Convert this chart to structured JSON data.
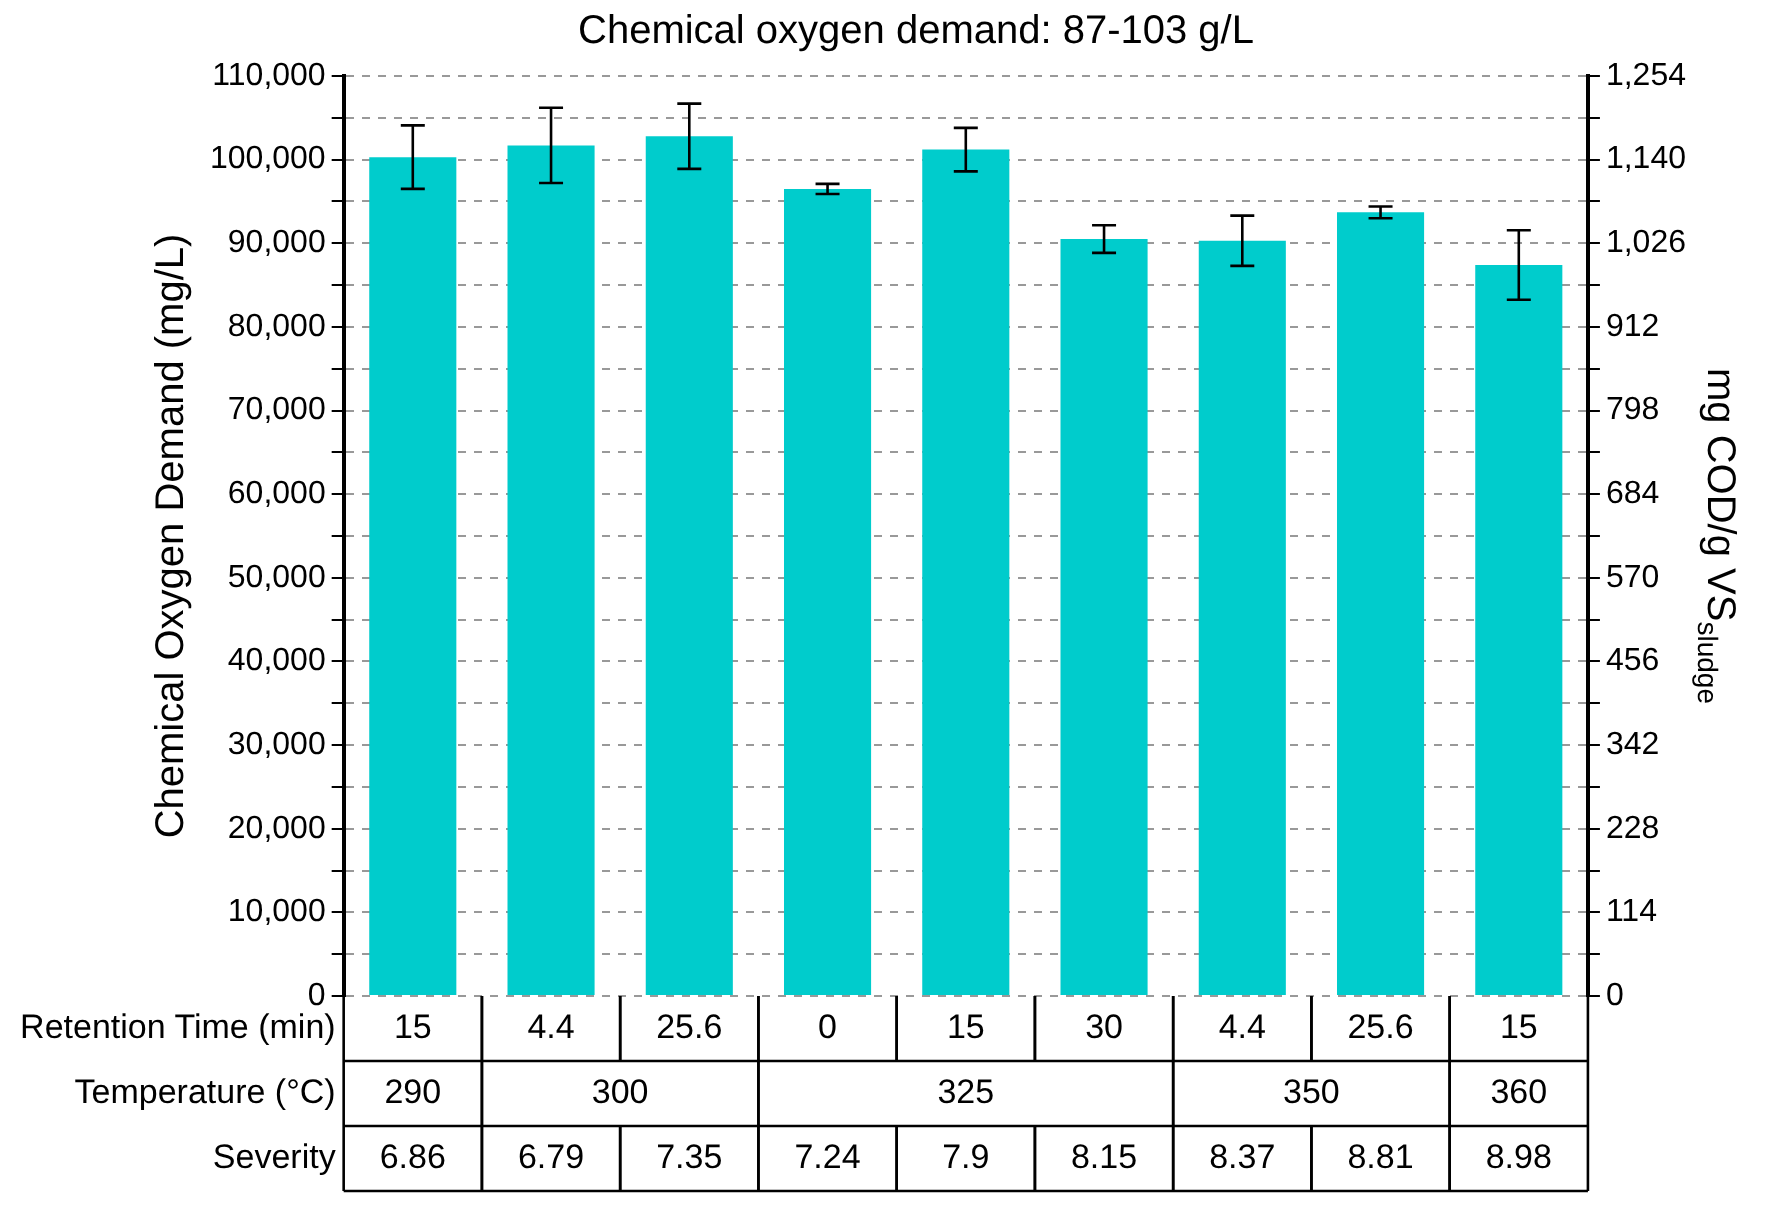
{
  "chart_data": {
    "type": "bar",
    "title": "Chemical oxygen demand: 87-103 g/L",
    "ylabel": "Chemical Oxygen Demand (mg/L)",
    "y2label": "mg COD/g VS$_{sludge}$",
    "categories": [
      "15",
      "4.4",
      "25.6",
      "0",
      "15",
      "30",
      "4.4",
      "25.6",
      "15"
    ],
    "values": [
      100300,
      101700,
      102800,
      96500,
      101200,
      90500,
      90300,
      93700,
      87400
    ],
    "errors": [
      3800,
      4500,
      3900,
      600,
      2600,
      1650,
      3000,
      700,
      4150
    ],
    "color": "#00cccc",
    "ylim": [
      0,
      110000
    ],
    "yticks": [
      {
        "value": 0,
        "label": "0"
      },
      {
        "value": 5000,
        "label": null
      },
      {
        "value": 10000,
        "label": "10,000"
      },
      {
        "value": 15000,
        "label": null
      },
      {
        "value": 20000,
        "label": "20,000"
      },
      {
        "value": 25000,
        "label": null
      },
      {
        "value": 30000,
        "label": "30,000"
      },
      {
        "value": 35000,
        "label": null
      },
      {
        "value": 40000,
        "label": "40,000"
      },
      {
        "value": 45000,
        "label": null
      },
      {
        "value": 50000,
        "label": "50,000"
      },
      {
        "value": 55000,
        "label": null
      },
      {
        "value": 60000,
        "label": "60,000"
      },
      {
        "value": 65000,
        "label": null
      },
      {
        "value": 70000,
        "label": "70,000"
      },
      {
        "value": 75000,
        "label": null
      },
      {
        "value": 80000,
        "label": "80,000"
      },
      {
        "value": 85000,
        "label": null
      },
      {
        "value": 90000,
        "label": "90,000"
      },
      {
        "value": 95000,
        "label": null
      },
      {
        "value": 100000,
        "label": "100,000"
      },
      {
        "value": 105000,
        "label": null
      },
      {
        "value": 110000,
        "label": "110,000"
      }
    ],
    "y2lim": [
      0,
      1254
    ],
    "y2ticks": [
      0,
      {
        "value": 57,
        "label": null
      },
      114,
      {
        "value": 171,
        "label": null
      },
      228,
      {
        "value": 285,
        "label": null
      },
      342,
      {
        "value": 399,
        "label": null
      },
      456,
      {
        "value": 513,
        "label": null
      },
      570,
      {
        "value": 627,
        "label": null
      },
      684,
      {
        "value": 741,
        "label": null
      },
      798,
      {
        "value": 855,
        "label": null
      },
      912,
      {
        "value": 969,
        "label": null
      },
      {
        "value": 1026,
        "label": "1,026"
      },
      {
        "value": 1083,
        "label": null
      },
      {
        "value": 1140,
        "label": "1,140"
      },
      {
        "value": 1197,
        "label": null
      },
      {
        "value": 1254,
        "label": "1,254"
      }
    ],
    "grid": "y",
    "annotations": [
      "Retention Time (min)",
      "Temperature (°C)",
      "Severity",
      "290",
      "300",
      "325",
      "350",
      "360",
      "6.86",
      "6.79",
      "7.35",
      "7.24",
      "7.9",
      "8.15",
      "8.37",
      "8.81",
      "8.98"
    ]
  }
}
